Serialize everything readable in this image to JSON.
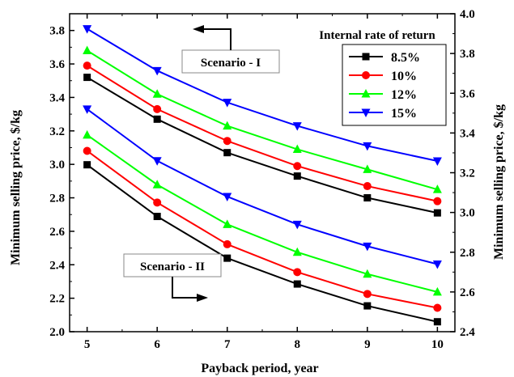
{
  "chart_data": {
    "type": "line",
    "xlabel": "Payback period, year",
    "ylabel_left": "Minimum selling price, $/kg",
    "ylabel_right": "Minimum selling price, $/kg",
    "x": [
      5,
      6,
      7,
      8,
      9,
      10
    ],
    "xlim": [
      4.75,
      10.25
    ],
    "ylim_left": [
      2.0,
      3.9
    ],
    "ylim_right": [
      2.4,
      4.0
    ],
    "x_ticks": [
      "5",
      "6",
      "7",
      "8",
      "9",
      "10"
    ],
    "y_ticks_left": [
      "2.0",
      "2.2",
      "2.4",
      "2.6",
      "2.8",
      "3.0",
      "3.2",
      "3.4",
      "3.6",
      "3.8"
    ],
    "y_ticks_right": [
      "2.4",
      "2.6",
      "2.8",
      "3.0",
      "3.2",
      "3.4",
      "3.6",
      "3.8",
      "4.0"
    ],
    "grid": false,
    "legend": {
      "title": "Internal rate of return",
      "position": "top-right"
    },
    "groups": [
      {
        "label": "Scenario - I",
        "axis": "left",
        "series": [
          {
            "name": "8.5%",
            "color": "#000000",
            "marker": "square",
            "values": [
              3.52,
              3.27,
              3.07,
              2.93,
              2.8,
              2.71
            ]
          },
          {
            "name": "10%",
            "color": "#ff0000",
            "marker": "circle",
            "values": [
              3.59,
              3.33,
              3.14,
              2.99,
              2.87,
              2.78
            ]
          },
          {
            "name": "12%",
            "color": "#00ff00",
            "marker": "triangle-up",
            "values": [
              3.68,
              3.42,
              3.23,
              3.09,
              2.97,
              2.85
            ]
          },
          {
            "name": "15%",
            "color": "#0000ff",
            "marker": "triangle-down",
            "values": [
              3.81,
              3.56,
              3.37,
              3.23,
              3.11,
              3.02
            ]
          }
        ]
      },
      {
        "label": "Scenario - II",
        "axis": "right",
        "series": [
          {
            "name": "8.5%",
            "color": "#000000",
            "marker": "square",
            "values": [
              3.24,
              2.98,
              2.77,
              2.64,
              2.53,
              2.45
            ]
          },
          {
            "name": "10%",
            "color": "#ff0000",
            "marker": "circle",
            "values": [
              3.31,
              3.05,
              2.84,
              2.7,
              2.59,
              2.52
            ]
          },
          {
            "name": "12%",
            "color": "#00ff00",
            "marker": "triangle-up",
            "values": [
              3.39,
              3.14,
              2.94,
              2.8,
              2.69,
              2.6
            ]
          },
          {
            "name": "15%",
            "color": "#0000ff",
            "marker": "triangle-down",
            "values": [
              3.52,
              3.26,
              3.08,
              2.94,
              2.83,
              2.74
            ]
          }
        ]
      }
    ]
  }
}
